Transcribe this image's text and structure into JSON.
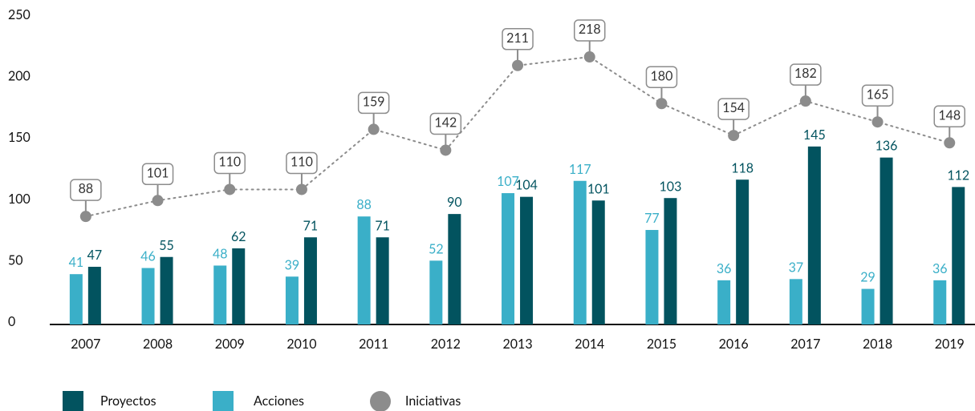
{
  "chart_data": {
    "type": "bar_line",
    "categories": [
      "2007",
      "2008",
      "2009",
      "2010",
      "2011",
      "2012",
      "2013",
      "2014",
      "2015",
      "2016",
      "2017",
      "2018",
      "2019"
    ],
    "series": [
      {
        "name": "Acciones",
        "color": "#3aafc8",
        "type": "bar",
        "values": [
          41,
          46,
          48,
          39,
          88,
          52,
          107,
          117,
          77,
          36,
          37,
          29,
          36
        ]
      },
      {
        "name": "Proyectos",
        "color": "#02535f",
        "type": "bar",
        "values": [
          47,
          55,
          62,
          71,
          71,
          90,
          104,
          101,
          103,
          118,
          145,
          136,
          112
        ]
      },
      {
        "name": "Iniciativas",
        "color": "#8c8c8c",
        "type": "line",
        "values": [
          88,
          101,
          110,
          110,
          159,
          142,
          211,
          218,
          180,
          154,
          182,
          165,
          148
        ]
      }
    ],
    "legend_order": [
      "Proyectos",
      "Acciones",
      "Iniciativas"
    ],
    "ylim": [
      0,
      250
    ],
    "yticks": [
      0,
      50,
      100,
      150,
      200,
      250
    ],
    "grid": false,
    "legend": "bottom"
  }
}
